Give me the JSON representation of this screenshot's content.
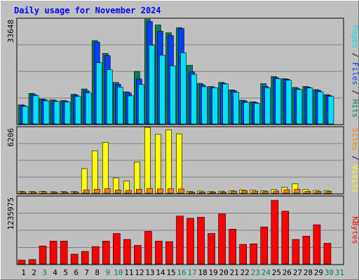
{
  "chart_data": {
    "type": "bar",
    "title": "Daily usage for November 2024",
    "categories": [
      "1",
      "2",
      "3",
      "4",
      "5",
      "6",
      "7",
      "8",
      "9",
      "10",
      "11",
      "12",
      "13",
      "14",
      "15",
      "16",
      "17",
      "18",
      "19",
      "20",
      "21",
      "22",
      "23",
      "24",
      "25",
      "26",
      "27",
      "28",
      "29",
      "30",
      "31"
    ],
    "weekend_days": [
      "3",
      "9",
      "10",
      "16",
      "17",
      "23",
      "24",
      "30",
      "31"
    ],
    "panels": [
      {
        "id": "top",
        "ymax": 33648,
        "ymax_label": "33648",
        "side_label": [
          "Pages",
          "Files",
          "Hits"
        ],
        "series": [
          {
            "name": "Hits",
            "color": "#00805c",
            "values": [
              6100,
              9800,
              8000,
              7700,
              7500,
              9500,
              11200,
              26700,
              22600,
              13300,
              10300,
              16800,
              33500,
              31700,
              29200,
              30800,
              18800,
              13000,
              12000,
              13300,
              10900,
              7600,
              7100,
              12900,
              15200,
              14500,
              11700,
              12000,
              11000,
              9400,
              0
            ]
          },
          {
            "name": "Files",
            "color": "#0040ff",
            "values": [
              5900,
              9400,
              7700,
              7400,
              7300,
              9200,
              10600,
              26200,
              21900,
              12700,
              9900,
              14400,
              32800,
              29700,
              28300,
              30600,
              16700,
              12500,
              11700,
              13000,
              10600,
              7300,
              6900,
              12000,
              14800,
              14300,
              11300,
              11800,
              10700,
              9100,
              0
            ]
          },
          {
            "name": "Pages",
            "color": "#00e0ff",
            "values": [
              5600,
              9100,
              7400,
              7200,
              7000,
              8800,
              9900,
              19600,
              17400,
              11800,
              9000,
              12600,
              25200,
              22000,
              18600,
              22800,
              15900,
              11900,
              11600,
              12800,
              10100,
              6900,
              6600,
              11600,
              14500,
              14000,
              11000,
              11500,
              10300,
              8800,
              0
            ]
          }
        ]
      },
      {
        "id": "middle",
        "ymax": 6206,
        "ymax_label": "6206",
        "side_label": [
          "Sites",
          "Visits"
        ],
        "series": [
          {
            "name": "Visits",
            "color": "#ffff00",
            "values": [
              180,
              160,
              180,
              140,
              150,
              160,
              2320,
              4000,
              4800,
              1450,
              1150,
              2950,
              6206,
              5550,
              5980,
              5600,
              180,
              200,
              180,
              190,
              250,
              320,
              290,
              230,
              340,
              550,
              900,
              340,
              270,
              250,
              0
            ]
          },
          {
            "name": "Sites",
            "color": "#ff8000",
            "values": [
              130,
              120,
              140,
              110,
              110,
              120,
              320,
              380,
              420,
              300,
              260,
              380,
              450,
              400,
              420,
              400,
              110,
              120,
              110,
              120,
              190,
              240,
              190,
              150,
              200,
              330,
              380,
              180,
              160,
              160,
              0
            ]
          }
        ]
      },
      {
        "id": "bottom",
        "ymax": 1235975,
        "ymax_label": "1235975",
        "side_label": [
          "KBytes"
        ],
        "series": [
          {
            "name": "KBytes",
            "color": "#ff0000",
            "values": [
              70000,
              80000,
              330000,
              420000,
              420000,
              180000,
              230000,
              320000,
              420000,
              560000,
              450000,
              340000,
              600000,
              420000,
              410000,
              880000,
              840000,
              860000,
              560000,
              920000,
              640000,
              360000,
              370000,
              680000,
              1170000,
              970000,
              450000,
              510000,
              720000,
              380000,
              0
            ]
          }
        ]
      }
    ],
    "xlabel": "",
    "ylabel": ""
  },
  "colors": {
    "title": "#0000ff",
    "day_weekday": "#000000",
    "day_weekend": "#00805c",
    "grid": "#808080",
    "axis_text": "#000000",
    "panel_bg": "#c0c0c0"
  }
}
